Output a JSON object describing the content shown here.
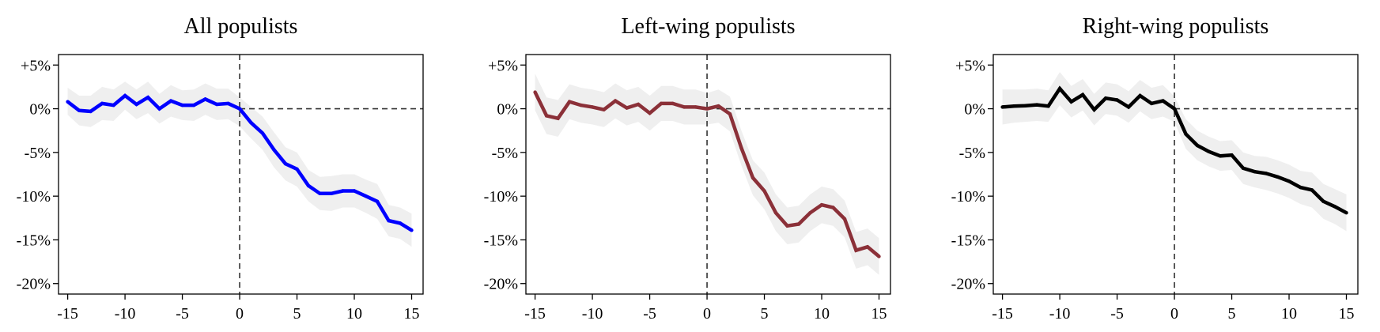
{
  "chart_data": [
    {
      "type": "line",
      "title": "All populists",
      "xlabel": "",
      "ylabel": "",
      "xlim": [
        -15.8,
        16
      ],
      "ylim": [
        -21.2,
        6.2
      ],
      "xticks": [
        -15,
        -10,
        -5,
        0,
        5,
        10,
        15
      ],
      "xtick_labels": [
        "-15",
        "-10",
        "-5",
        "0",
        "5",
        "10",
        "15"
      ],
      "yticks": [
        5,
        0,
        -5,
        -10,
        -15,
        -20
      ],
      "ytick_labels": [
        "+5%",
        "0%",
        "-5%",
        "-10%",
        "-15%",
        "-20%"
      ],
      "reference_lines": {
        "vertical_x": 0,
        "horizontal_y": 0,
        "style": "dashed"
      },
      "grid": false,
      "line_color": "#0000ff",
      "band_color": "#efefef",
      "x": [
        -15,
        -14,
        -13,
        -12,
        -11,
        -10,
        -9,
        -8,
        -7,
        -6,
        -5,
        -4,
        -3,
        -2,
        -1,
        0,
        1,
        2,
        3,
        4,
        5,
        6,
        7,
        8,
        9,
        10,
        11,
        12,
        13,
        14,
        15
      ],
      "values": [
        0.8,
        -0.2,
        -0.3,
        0.6,
        0.4,
        1.5,
        0.5,
        1.3,
        0.0,
        0.9,
        0.4,
        0.4,
        1.1,
        0.5,
        0.6,
        0.0,
        -1.6,
        -2.8,
        -4.7,
        -6.3,
        -6.9,
        -8.8,
        -9.7,
        -9.7,
        -9.4,
        -9.4,
        -10.0,
        -10.6,
        -12.8,
        -13.1,
        -13.9
      ],
      "ci_lower": [
        -0.7,
        -1.9,
        -2.1,
        -1.3,
        -1.4,
        -0.1,
        -1.2,
        -0.5,
        -1.7,
        -0.9,
        -1.3,
        -1.4,
        -0.7,
        -1.3,
        -1.2,
        -2.0,
        -3.4,
        -4.7,
        -6.7,
        -8.2,
        -8.9,
        -10.6,
        -11.6,
        -11.7,
        -11.3,
        -11.3,
        -11.9,
        -12.6,
        -14.6,
        -14.9,
        -15.8
      ],
      "ci_upper": [
        2.4,
        1.5,
        1.5,
        2.5,
        2.2,
        3.1,
        2.2,
        3.1,
        1.7,
        2.7,
        2.1,
        2.2,
        2.9,
        2.3,
        2.3,
        1.3,
        0.2,
        -0.9,
        -2.7,
        -4.4,
        -5.0,
        -7.0,
        -7.8,
        -7.7,
        -7.5,
        -7.5,
        -8.1,
        -8.6,
        -11.0,
        -11.3,
        -12.0
      ]
    },
    {
      "type": "line",
      "title": "Left-wing populists",
      "xlabel": "",
      "ylabel": "",
      "xlim": [
        -15.8,
        16
      ],
      "ylim": [
        -21.2,
        6.2
      ],
      "xticks": [
        -15,
        -10,
        -5,
        0,
        5,
        10,
        15
      ],
      "xtick_labels": [
        "-15",
        "-10",
        "-5",
        "0",
        "5",
        "10",
        "15"
      ],
      "yticks": [
        5,
        0,
        -5,
        -10,
        -15,
        -20
      ],
      "ytick_labels": [
        "+5%",
        "0%",
        "-5%",
        "-10%",
        "-15%",
        "-20%"
      ],
      "reference_lines": {
        "vertical_x": 0,
        "horizontal_y": 0,
        "style": "dashed"
      },
      "grid": false,
      "line_color": "#8b3038",
      "band_color": "#efefef",
      "x": [
        -15,
        -14,
        -13,
        -12,
        -11,
        -10,
        -9,
        -8,
        -7,
        -6,
        -5,
        -4,
        -3,
        -2,
        -1,
        0,
        1,
        2,
        3,
        4,
        5,
        6,
        7,
        8,
        9,
        10,
        11,
        12,
        13,
        14,
        15
      ],
      "values": [
        1.9,
        -0.8,
        -1.1,
        0.8,
        0.4,
        0.2,
        -0.1,
        0.9,
        0.1,
        0.5,
        -0.5,
        0.6,
        0.6,
        0.2,
        0.2,
        0.0,
        0.3,
        -0.6,
        -4.5,
        -7.9,
        -9.4,
        -11.9,
        -13.4,
        -13.2,
        -11.9,
        -11.0,
        -11.3,
        -12.6,
        -16.2,
        -15.8,
        -16.9
      ],
      "ci_lower": [
        -0.2,
        -2.9,
        -3.2,
        -1.2,
        -1.6,
        -1.8,
        -2.1,
        -1.1,
        -1.9,
        -1.5,
        -2.5,
        -1.4,
        -1.4,
        -1.8,
        -1.8,
        -1.8,
        -1.6,
        -2.6,
        -6.5,
        -9.9,
        -11.5,
        -14.0,
        -15.5,
        -15.3,
        -14.0,
        -13.1,
        -13.4,
        -14.7,
        -18.3,
        -17.9,
        -19.0
      ],
      "ci_upper": [
        4.0,
        1.3,
        1.0,
        2.8,
        2.4,
        2.2,
        1.9,
        2.9,
        2.1,
        2.5,
        1.5,
        2.6,
        2.6,
        2.2,
        2.2,
        1.8,
        2.2,
        1.4,
        -2.5,
        -5.9,
        -7.3,
        -9.8,
        -11.3,
        -11.1,
        -9.8,
        -8.9,
        -9.2,
        -10.5,
        -14.1,
        -13.7,
        -14.8
      ]
    },
    {
      "type": "line",
      "title": "Right-wing populists",
      "xlabel": "",
      "ylabel": "",
      "xlim": [
        -15.8,
        16
      ],
      "ylim": [
        -21.2,
        6.2
      ],
      "xticks": [
        -15,
        -10,
        -5,
        0,
        5,
        10,
        15
      ],
      "xtick_labels": [
        "-15",
        "-10",
        "-5",
        "0",
        "5",
        "10",
        "15"
      ],
      "yticks": [
        5,
        0,
        -5,
        -10,
        -15,
        -20
      ],
      "ytick_labels": [
        "+5%",
        "0%",
        "-5%",
        "-10%",
        "-15%",
        "-20%"
      ],
      "reference_lines": {
        "vertical_x": 0,
        "horizontal_y": 0,
        "style": "dashed"
      },
      "grid": false,
      "line_color": "#000000",
      "band_color": "#efefef",
      "x": [
        -15,
        -14,
        -13,
        -12,
        -11,
        -10,
        -9,
        -8,
        -7,
        -6,
        -5,
        -4,
        -3,
        -2,
        -1,
        0,
        1,
        2,
        3,
        4,
        5,
        6,
        7,
        8,
        9,
        10,
        11,
        12,
        13,
        14,
        15
      ],
      "values": [
        0.2,
        0.3,
        0.35,
        0.45,
        0.3,
        2.3,
        0.8,
        1.6,
        -0.1,
        1.2,
        1.0,
        0.2,
        1.5,
        0.6,
        0.9,
        0.0,
        -2.9,
        -4.2,
        -4.9,
        -5.4,
        -5.3,
        -6.8,
        -7.2,
        -7.4,
        -7.8,
        -8.3,
        -9.0,
        -9.3,
        -10.6,
        -11.2,
        -11.9
      ],
      "ci_lower": [
        -1.8,
        -1.6,
        -1.5,
        -1.4,
        -1.5,
        0.4,
        -1.0,
        -0.2,
        -1.9,
        -0.6,
        -0.8,
        -1.6,
        -0.3,
        -1.2,
        -0.9,
        -1.5,
        -4.6,
        -5.9,
        -6.6,
        -7.1,
        -7.0,
        -8.6,
        -9.0,
        -9.3,
        -9.7,
        -10.2,
        -10.9,
        -11.3,
        -12.6,
        -13.2,
        -14.0
      ],
      "ci_upper": [
        2.2,
        2.2,
        2.2,
        2.3,
        2.1,
        4.2,
        2.6,
        3.4,
        1.7,
        3.0,
        2.8,
        2.0,
        3.3,
        2.4,
        2.7,
        1.4,
        -1.2,
        -2.5,
        -3.2,
        -3.7,
        -3.6,
        -5.0,
        -5.4,
        -5.5,
        -5.9,
        -6.4,
        -7.1,
        -7.3,
        -8.6,
        -9.2,
        -9.8
      ]
    }
  ]
}
